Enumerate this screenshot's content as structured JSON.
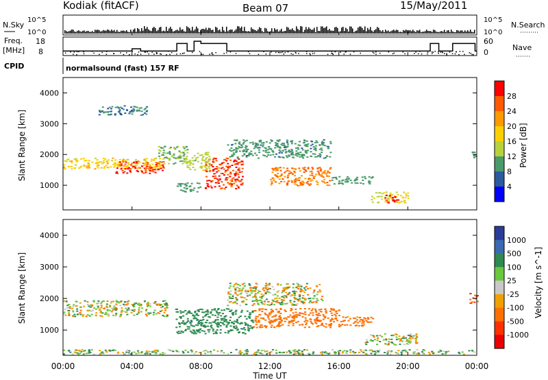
{
  "header": {
    "station": "Kodiak (fitACF)",
    "beam": "Beam 07",
    "date": "15/May/2011"
  },
  "top_panels": {
    "nsky_label": "N.Sky",
    "nsearch_label": "N.Search",
    "freq_label": "Freq.",
    "freq_unit": "[MHz]",
    "nave_label": "Nave",
    "cpid_label": "CPID",
    "cpid_text": "normalsound (fast) 157 RF",
    "noise_ticks_left": [
      "10^5",
      "10^0"
    ],
    "noise_ticks_right": [
      "10^5",
      "10^0"
    ],
    "freq_ticks": [
      "18",
      "8"
    ],
    "nave_ticks": [
      "60",
      "0"
    ]
  },
  "axes": {
    "xlabel": "Time UT",
    "ylabel": "Slant Range [km]",
    "xticks": [
      "00:00",
      "04:00",
      "08:00",
      "12:00",
      "16:00",
      "20:00",
      "00:00"
    ],
    "yticks": [
      "4000",
      "3000",
      "2000",
      "1000"
    ]
  },
  "power_scale": {
    "label": "Power [dB]",
    "ticks": [
      "28",
      "24",
      "20",
      "16",
      "12",
      "8",
      "4"
    ],
    "colors": [
      "#ff0000",
      "#ff5a00",
      "#ff9a00",
      "#ffd000",
      "#b8d23c",
      "#4a9a6a",
      "#2c5aa0",
      "#0000ff"
    ]
  },
  "velocity_scale": {
    "label": "Velocity [m s^-1]",
    "ticks": [
      "1000",
      "500",
      "100",
      "25",
      "-25",
      "-100",
      "-500",
      "-1000"
    ],
    "colors": [
      "#2c3c9a",
      "#3a6ab0",
      "#2e8a50",
      "#6ac83c",
      "#c8c8c8",
      "#f0a000",
      "#ff7000",
      "#ff3000",
      "#e80000"
    ]
  },
  "chart_data": {
    "type": "heatmap",
    "x_range_hours": [
      0,
      24
    ],
    "y_range_km": [
      200,
      4500
    ],
    "panels": [
      "Power [dB]",
      "Velocity [m s^-1]"
    ],
    "power_bands": [
      {
        "t0": 0.0,
        "t1": 5.8,
        "r_low": 1550,
        "r_high": 1900,
        "value_db": 16
      },
      {
        "t0": 3.0,
        "t1": 5.8,
        "r_low": 1400,
        "r_high": 1800,
        "value_db": 26
      },
      {
        "t0": 5.5,
        "t1": 7.2,
        "r_low": 1700,
        "r_high": 2300,
        "value_db": 10
      },
      {
        "t0": 8.2,
        "t1": 10.4,
        "r_low": 900,
        "r_high": 1900,
        "value_db": 26
      },
      {
        "t0": 7.0,
        "t1": 8.5,
        "r_low": 1500,
        "r_high": 2100,
        "value_db": 12
      },
      {
        "t0": 9.5,
        "t1": 15.5,
        "r_low": 1900,
        "r_high": 2500,
        "value_db": 7
      },
      {
        "t0": 12.0,
        "t1": 15.5,
        "r_low": 1000,
        "r_high": 1600,
        "value_db": 22
      },
      {
        "t0": 15.5,
        "t1": 18.0,
        "r_low": 1050,
        "r_high": 1300,
        "value_db": 8
      },
      {
        "t0": 17.8,
        "t1": 20.0,
        "r_low": 450,
        "r_high": 800,
        "value_db": 14
      },
      {
        "t0": 18.6,
        "t1": 19.4,
        "r_low": 450,
        "r_high": 700,
        "value_db": 28
      },
      {
        "t0": 6.5,
        "t1": 8.0,
        "r_low": 800,
        "r_high": 1100,
        "value_db": 8
      },
      {
        "t0": 2.0,
        "t1": 5.0,
        "r_low": 3300,
        "r_high": 3600,
        "value_db": 6
      },
      {
        "t0": 23.7,
        "t1": 24.0,
        "r_low": 1900,
        "r_high": 2100,
        "value_db": 8
      }
    ],
    "velocity_bands": [
      {
        "t0": 0.0,
        "t1": 6.0,
        "r_low": 1450,
        "r_high": 1950,
        "value_ms": 0
      },
      {
        "t0": 6.5,
        "t1": 11.0,
        "r_low": 900,
        "r_high": 1700,
        "value_ms": 200
      },
      {
        "t0": 9.5,
        "t1": 15.0,
        "r_low": 1800,
        "r_high": 2500,
        "value_ms": 0
      },
      {
        "t0": 11.0,
        "t1": 16.0,
        "r_low": 1100,
        "r_high": 1700,
        "value_ms": -200
      },
      {
        "t0": 16.0,
        "t1": 18.0,
        "r_low": 1150,
        "r_high": 1450,
        "value_ms": -150
      },
      {
        "t0": 17.5,
        "t1": 20.5,
        "r_low": 550,
        "r_high": 900,
        "value_ms": 0
      },
      {
        "t0": 0.0,
        "t1": 24.0,
        "r_low": 250,
        "r_high": 400,
        "value_ms": 50
      },
      {
        "t0": 23.5,
        "t1": 24.0,
        "r_low": 1850,
        "r_high": 2200,
        "value_ms": -300
      }
    ],
    "freq_mhz_segments": [
      {
        "t0": 0.0,
        "t1": 4.0,
        "value": 11
      },
      {
        "t0": 4.0,
        "t1": 4.5,
        "value": 12.5
      },
      {
        "t0": 4.5,
        "t1": 6.6,
        "value": 11
      },
      {
        "t0": 6.6,
        "t1": 7.2,
        "value": 16
      },
      {
        "t0": 7.2,
        "t1": 7.6,
        "value": 11
      },
      {
        "t0": 7.6,
        "t1": 8.0,
        "value": 17.5
      },
      {
        "t0": 8.0,
        "t1": 9.5,
        "value": 16
      },
      {
        "t0": 9.5,
        "t1": 21.3,
        "value": 11
      },
      {
        "t0": 21.3,
        "t1": 21.8,
        "value": 16
      },
      {
        "t0": 21.8,
        "t1": 22.6,
        "value": 11
      },
      {
        "t0": 22.6,
        "t1": 23.9,
        "value": 16
      },
      {
        "t0": 23.9,
        "t1": 24.0,
        "value": 11
      }
    ]
  }
}
